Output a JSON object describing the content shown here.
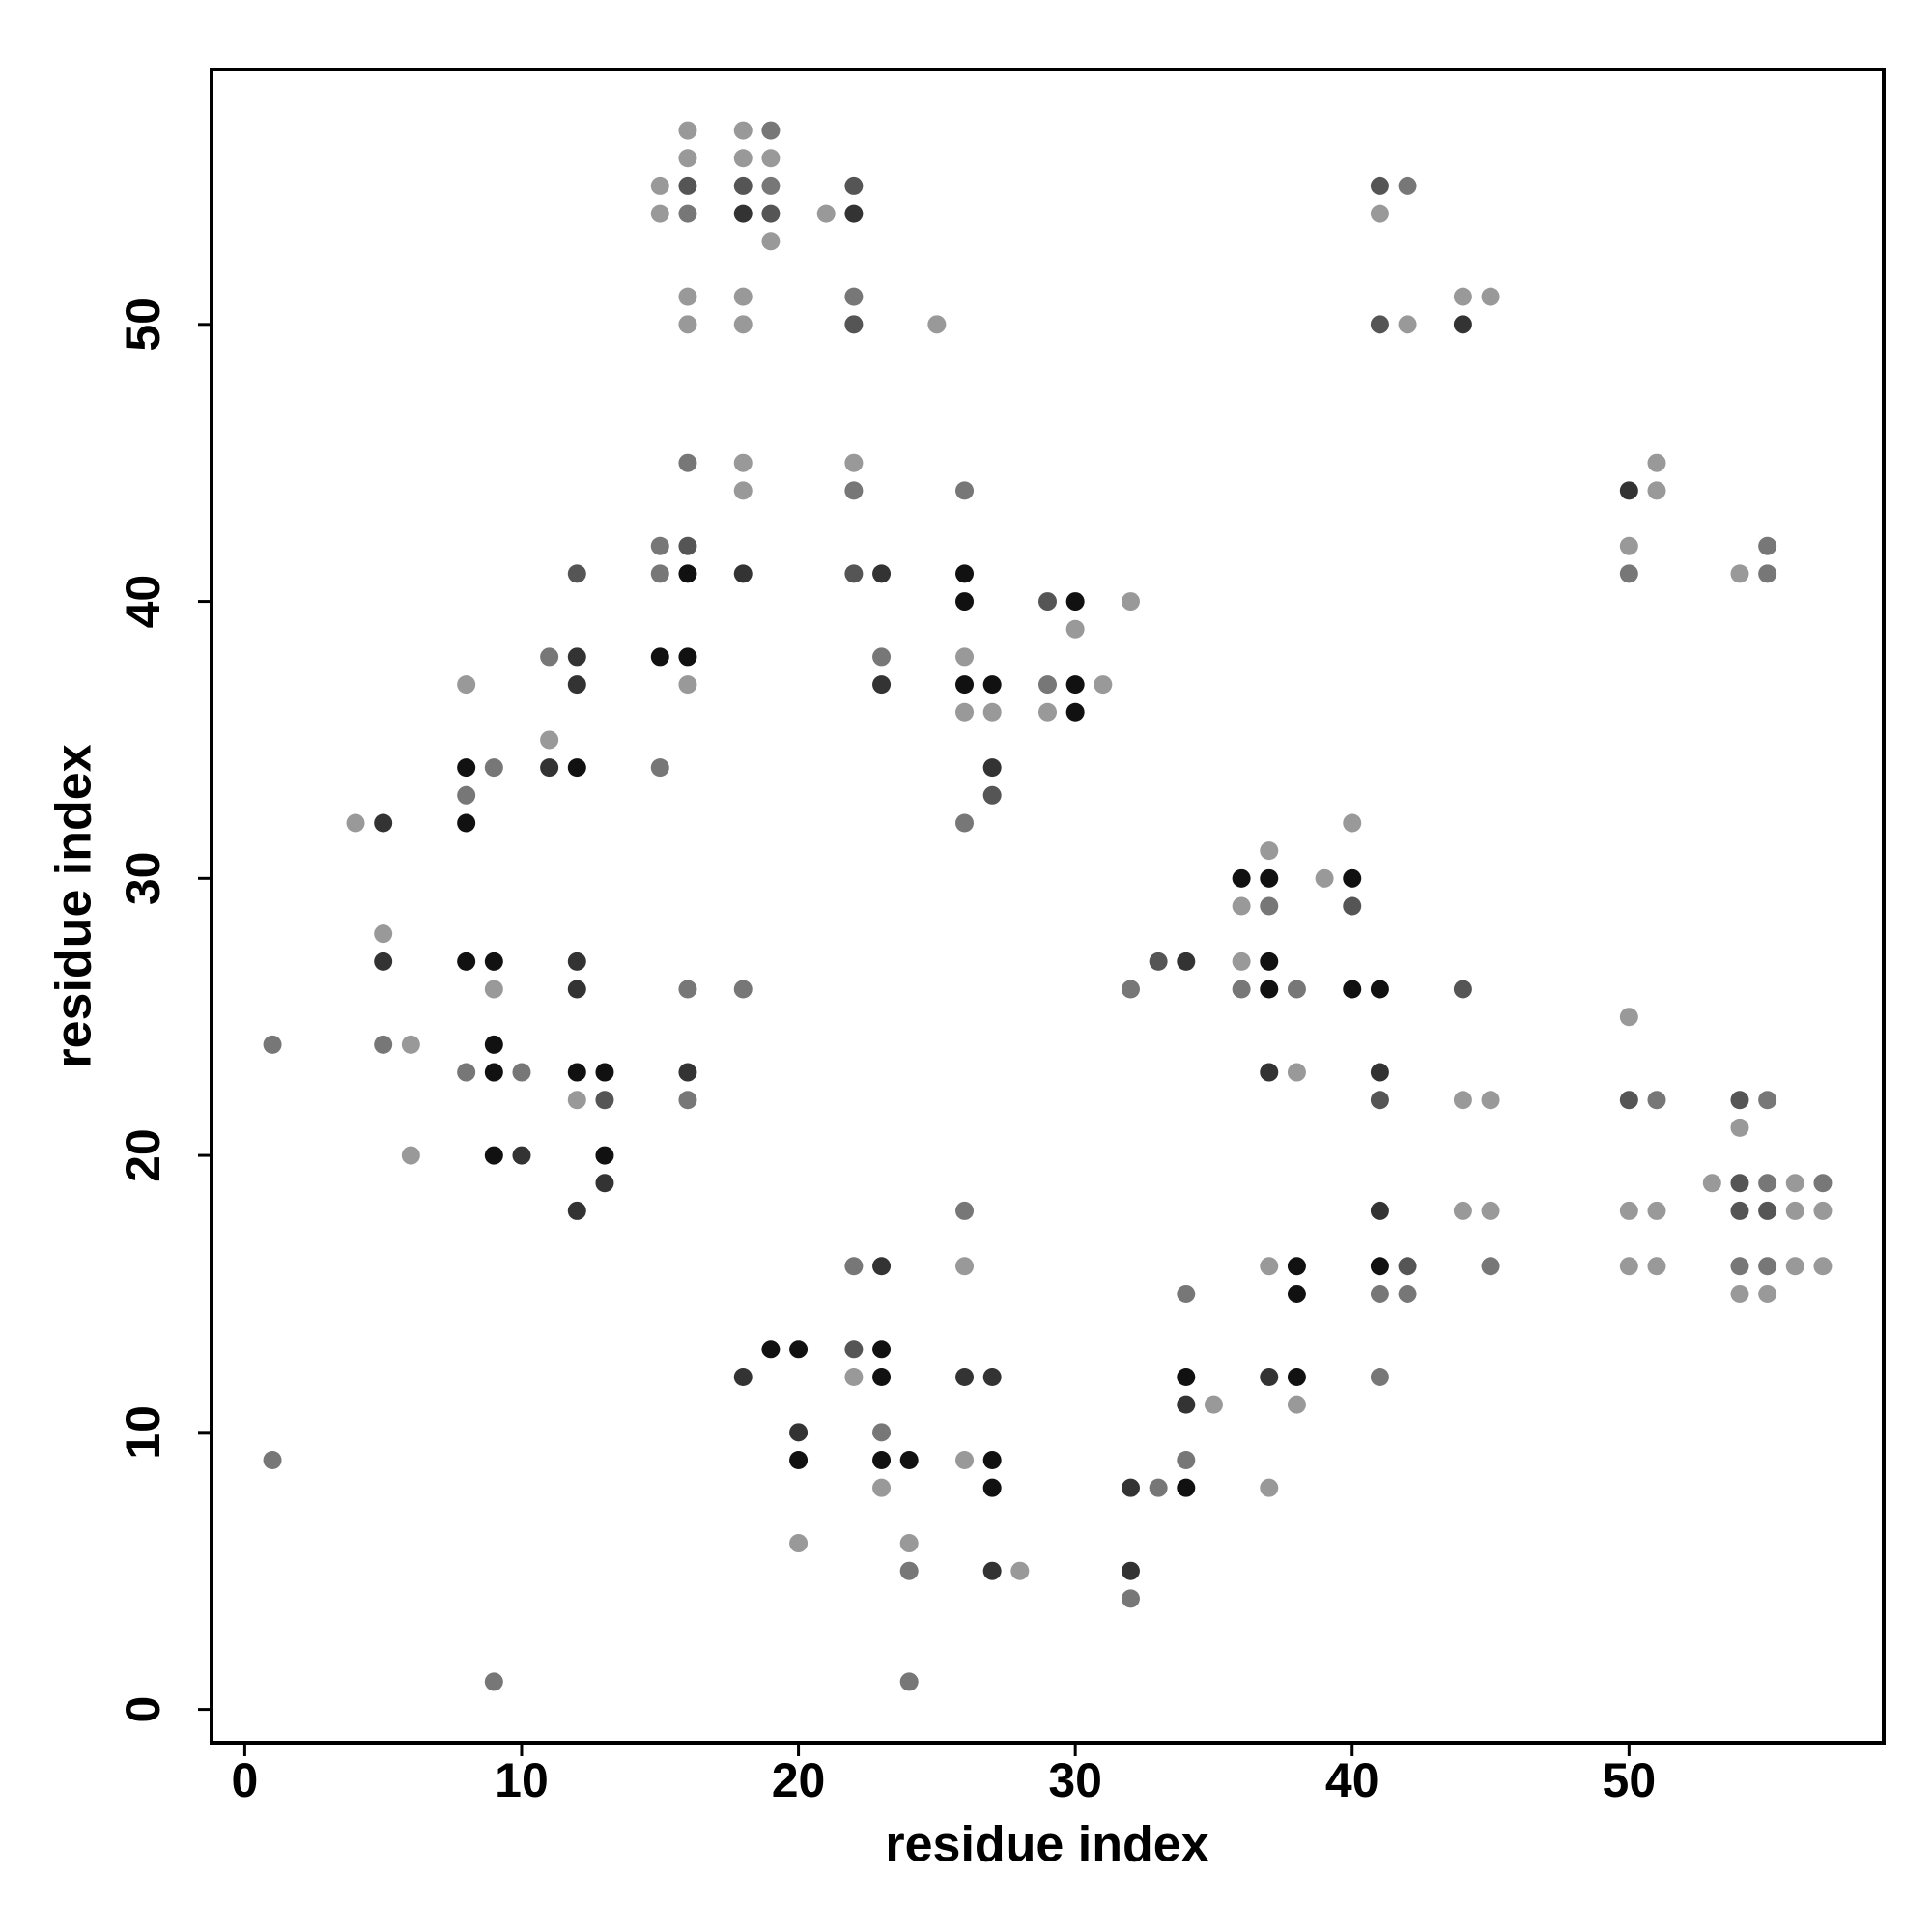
{
  "chart_data": {
    "type": "scatter",
    "x_label": "residue index",
    "y_label": "residue index",
    "xlim": [
      -1.2,
      59.2
    ],
    "ylim": [
      -1.2,
      59.2
    ],
    "xticks": [
      0,
      10,
      20,
      30,
      40,
      50
    ],
    "yticks": [
      0,
      10,
      20,
      30,
      40,
      50
    ],
    "x": [
      1,
      1,
      4,
      5,
      5,
      5,
      5,
      6,
      6,
      8,
      8,
      8,
      8,
      8,
      8,
      9,
      9,
      9,
      9,
      9,
      9,
      9,
      10,
      10,
      11,
      11,
      11,
      12,
      12,
      12,
      12,
      12,
      12,
      12,
      12,
      12,
      13,
      13,
      13,
      13,
      15,
      15,
      15,
      15,
      15,
      15,
      16,
      16,
      16,
      16,
      16,
      16,
      16,
      16,
      16,
      16,
      16,
      16,
      16,
      16,
      18,
      18,
      18,
      18,
      18,
      18,
      18,
      18,
      18,
      18,
      18,
      19,
      19,
      19,
      19,
      19,
      19,
      20,
      20,
      20,
      20,
      21,
      22,
      22,
      22,
      22,
      22,
      22,
      22,
      22,
      22,
      22,
      23,
      23,
      23,
      23,
      23,
      23,
      23,
      23,
      23,
      24,
      24,
      24,
      24,
      25,
      26,
      26,
      26,
      26,
      26,
      26,
      26,
      26,
      26,
      26,
      26,
      27,
      27,
      27,
      27,
      27,
      27,
      27,
      27,
      28,
      29,
      29,
      29,
      30,
      30,
      30,
      30,
      31,
      32,
      32,
      32,
      32,
      32,
      33,
      33,
      34,
      34,
      34,
      34,
      34,
      34,
      35,
      36,
      36,
      36,
      36,
      37,
      37,
      37,
      37,
      37,
      37,
      37,
      37,
      37,
      38,
      38,
      38,
      38,
      38,
      38,
      39,
      40,
      40,
      40,
      40,
      41,
      41,
      41,
      41,
      41,
      41,
      41,
      41,
      41,
      41,
      42,
      42,
      42,
      42,
      44,
      44,
      44,
      44,
      44,
      45,
      45,
      45,
      45,
      50,
      50,
      50,
      50,
      50,
      50,
      50,
      51,
      51,
      51,
      51,
      51,
      53,
      54,
      54,
      54,
      54,
      54,
      54,
      54,
      55,
      55,
      55,
      55,
      55,
      55,
      55,
      56,
      56,
      56,
      57,
      57,
      57
    ],
    "y": [
      24,
      9,
      32,
      32,
      28,
      27,
      24,
      24,
      20,
      37,
      34,
      33,
      32,
      27,
      23,
      34,
      27,
      26,
      24,
      23,
      20,
      1,
      23,
      20,
      38,
      35,
      34,
      41,
      38,
      37,
      34,
      27,
      26,
      23,
      22,
      18,
      23,
      22,
      20,
      19,
      55,
      54,
      42,
      41,
      38,
      34,
      57,
      56,
      55,
      54,
      51,
      50,
      45,
      42,
      41,
      38,
      37,
      26,
      23,
      22,
      57,
      56,
      55,
      54,
      51,
      50,
      45,
      44,
      41,
      26,
      12,
      57,
      56,
      55,
      54,
      53,
      13,
      13,
      10,
      9,
      6,
      54,
      55,
      54,
      51,
      50,
      45,
      44,
      41,
      16,
      13,
      12,
      41,
      38,
      37,
      16,
      13,
      12,
      10,
      9,
      8,
      9,
      6,
      5,
      1,
      50,
      44,
      41,
      40,
      38,
      37,
      36,
      32,
      18,
      16,
      12,
      9,
      37,
      36,
      34,
      33,
      12,
      9,
      8,
      5,
      5,
      40,
      37,
      36,
      40,
      39,
      37,
      36,
      37,
      40,
      26,
      8,
      5,
      4,
      27,
      8,
      27,
      15,
      12,
      11,
      9,
      8,
      11,
      30,
      29,
      27,
      26,
      31,
      30,
      29,
      27,
      26,
      23,
      16,
      12,
      8,
      26,
      23,
      16,
      15,
      12,
      11,
      30,
      32,
      30,
      29,
      26,
      55,
      54,
      50,
      26,
      23,
      22,
      18,
      16,
      15,
      12,
      55,
      50,
      16,
      15,
      51,
      50,
      26,
      22,
      18,
      51,
      22,
      18,
      16,
      44,
      42,
      41,
      25,
      22,
      18,
      16,
      45,
      44,
      22,
      18,
      16,
      19,
      41,
      22,
      21,
      19,
      18,
      16,
      15,
      42,
      41,
      22,
      19,
      18,
      16,
      15,
      19,
      18,
      16,
      19,
      18,
      16
    ],
    "colors": [
      "#777777",
      "#777777",
      "#999999",
      "#333333",
      "#999999",
      "#333333",
      "#777777",
      "#999999",
      "#999999",
      "#999999",
      "#111111",
      "#777777",
      "#111111",
      "#111111",
      "#777777",
      "#777777",
      "#111111",
      "#999999",
      "#111111",
      "#111111",
      "#111111",
      "#777777",
      "#777777",
      "#333333",
      "#777777",
      "#999999",
      "#333333",
      "#555555",
      "#333333",
      "#333333",
      "#111111",
      "#333333",
      "#333333",
      "#111111",
      "#999999",
      "#333333",
      "#111111",
      "#555555",
      "#111111",
      "#333333",
      "#999999",
      "#999999",
      "#777777",
      "#777777",
      "#111111",
      "#777777",
      "#999999",
      "#999999",
      "#555555",
      "#777777",
      "#999999",
      "#999999",
      "#777777",
      "#555555",
      "#111111",
      "#111111",
      "#999999",
      "#777777",
      "#333333",
      "#777777",
      "#999999",
      "#999999",
      "#555555",
      "#333333",
      "#999999",
      "#999999",
      "#999999",
      "#999999",
      "#333333",
      "#777777",
      "#333333",
      "#777777",
      "#999999",
      "#777777",
      "#555555",
      "#999999",
      "#111111",
      "#111111",
      "#333333",
      "#111111",
      "#999999",
      "#999999",
      "#555555",
      "#333333",
      "#777777",
      "#555555",
      "#999999",
      "#777777",
      "#555555",
      "#777777",
      "#555555",
      "#999999",
      "#333333",
      "#777777",
      "#333333",
      "#333333",
      "#111111",
      "#111111",
      "#777777",
      "#111111",
      "#999999",
      "#111111",
      "#999999",
      "#777777",
      "#777777",
      "#999999",
      "#777777",
      "#111111",
      "#111111",
      "#999999",
      "#111111",
      "#999999",
      "#777777",
      "#777777",
      "#999999",
      "#333333",
      "#999999",
      "#111111",
      "#999999",
      "#333333",
      "#555555",
      "#333333",
      "#111111",
      "#111111",
      "#333333",
      "#999999",
      "#555555",
      "#777777",
      "#999999",
      "#111111",
      "#999999",
      "#111111",
      "#111111",
      "#999999",
      "#999999",
      "#777777",
      "#333333",
      "#333333",
      "#777777",
      "#555555",
      "#777777",
      "#333333",
      "#777777",
      "#111111",
      "#333333",
      "#777777",
      "#111111",
      "#999999",
      "#111111",
      "#999999",
      "#999999",
      "#777777",
      "#999999",
      "#111111",
      "#777777",
      "#111111",
      "#111111",
      "#333333",
      "#999999",
      "#333333",
      "#999999",
      "#777777",
      "#999999",
      "#111111",
      "#111111",
      "#111111",
      "#999999",
      "#999999",
      "#999999",
      "#111111",
      "#555555",
      "#111111",
      "#555555",
      "#999999",
      "#555555",
      "#111111",
      "#333333",
      "#555555",
      "#333333",
      "#111111",
      "#777777",
      "#777777",
      "#777777",
      "#999999",
      "#555555",
      "#777777",
      "#999999",
      "#333333",
      "#555555",
      "#999999",
      "#999999",
      "#999999",
      "#999999",
      "#999999",
      "#777777",
      "#333333",
      "#999999",
      "#777777",
      "#999999",
      "#555555",
      "#999999",
      "#999999",
      "#999999",
      "#999999",
      "#777777",
      "#999999",
      "#999999",
      "#999999",
      "#999999",
      "#555555",
      "#999999",
      "#555555",
      "#555555",
      "#777777",
      "#999999",
      "#777777",
      "#777777",
      "#777777",
      "#777777",
      "#555555",
      "#777777",
      "#999999",
      "#999999",
      "#999999",
      "#999999",
      "#777777",
      "#999999",
      "#999999"
    ]
  }
}
